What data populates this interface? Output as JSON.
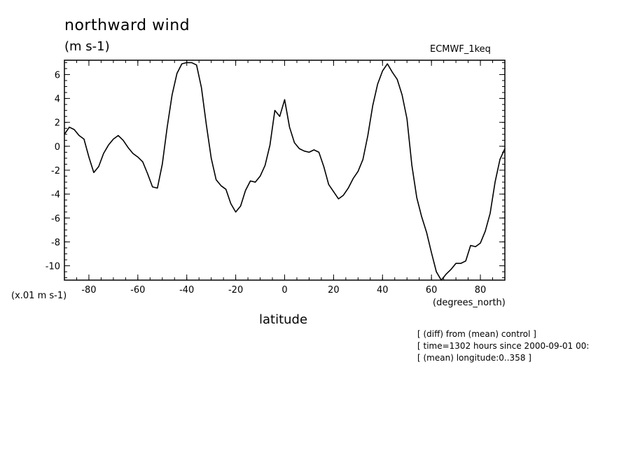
{
  "chart_data": {
    "type": "line",
    "title": "northward wind",
    "units": "(m s-1)",
    "dataset": "ECMWF_1keq",
    "scale_label": "(x.01 m s-1)",
    "xlabel": "latitude",
    "xunits": "(degrees_north)",
    "xlim": [
      -90,
      90
    ],
    "ylim": [
      -11.2,
      7.2
    ],
    "xticks": [
      -80,
      -60,
      -40,
      -20,
      0,
      20,
      40,
      60,
      80
    ],
    "xtick_labels": [
      "-80",
      "-60",
      "-40",
      "-20",
      "0",
      "20",
      "40",
      "60",
      "80"
    ],
    "yticks": [
      -10,
      -8,
      -6,
      -4,
      -2,
      0,
      2,
      4,
      6
    ],
    "ytick_labels": [
      "-10",
      "-8",
      "-6",
      "-4",
      "-2",
      "0",
      "2",
      "4",
      "6"
    ],
    "series": [
      {
        "name": "northward wind",
        "x": [
          -90,
          -88,
          -86,
          -84,
          -82,
          -80,
          -78,
          -76,
          -74,
          -72,
          -70,
          -68,
          -66,
          -64,
          -62,
          -60,
          -58,
          -56,
          -54,
          -52,
          -50,
          -48,
          -46,
          -44,
          -42,
          -40,
          -38,
          -36,
          -34,
          -32,
          -30,
          -28,
          -26,
          -24,
          -22,
          -20,
          -18,
          -16,
          -14,
          -12,
          -10,
          -8,
          -6,
          -4,
          -2,
          0,
          2,
          4,
          6,
          8,
          10,
          12,
          14,
          16,
          18,
          20,
          22,
          24,
          26,
          28,
          30,
          32,
          34,
          36,
          38,
          40,
          42,
          44,
          46,
          48,
          50,
          52,
          54,
          56,
          58,
          60,
          62,
          64,
          66,
          68,
          70,
          72,
          74,
          76,
          78,
          80,
          82,
          84,
          86,
          88,
          90
        ],
        "y": [
          1.0,
          1.6,
          1.4,
          0.9,
          0.6,
          -0.9,
          -2.2,
          -1.7,
          -0.6,
          0.1,
          0.6,
          0.9,
          0.5,
          -0.1,
          -0.6,
          -0.9,
          -1.3,
          -2.3,
          -3.4,
          -3.5,
          -1.5,
          1.6,
          4.3,
          6.1,
          6.9,
          7.0,
          7.0,
          6.8,
          4.9,
          1.8,
          -1.0,
          -2.8,
          -3.3,
          -3.6,
          -4.8,
          -5.5,
          -5.0,
          -3.7,
          -2.9,
          -3.0,
          -2.5,
          -1.6,
          0.1,
          3.0,
          2.5,
          3.9,
          1.6,
          0.3,
          -0.2,
          -0.4,
          -0.5,
          -0.3,
          -0.5,
          -1.7,
          -3.2,
          -3.8,
          -4.4,
          -4.1,
          -3.5,
          -2.7,
          -2.1,
          -1.1,
          0.9,
          3.4,
          5.2,
          6.3,
          6.9,
          6.2,
          5.6,
          4.3,
          2.3,
          -1.6,
          -4.3,
          -5.9,
          -7.2,
          -8.9,
          -10.5,
          -11.2,
          -10.7,
          -10.3,
          -9.8,
          -9.8,
          -9.6,
          -8.3,
          -8.4,
          -8.1,
          -7.1,
          -5.6,
          -3.0,
          -1.1,
          -0.2
        ]
      }
    ]
  },
  "notes": [
    "[ (diff) from (mean) control ]",
    "[ time=1302 hours since 2000-09-01 00:",
    "[ (mean) longitude:0..358 ]"
  ],
  "colors": {
    "line": "#000000",
    "background": "#ffffff"
  }
}
